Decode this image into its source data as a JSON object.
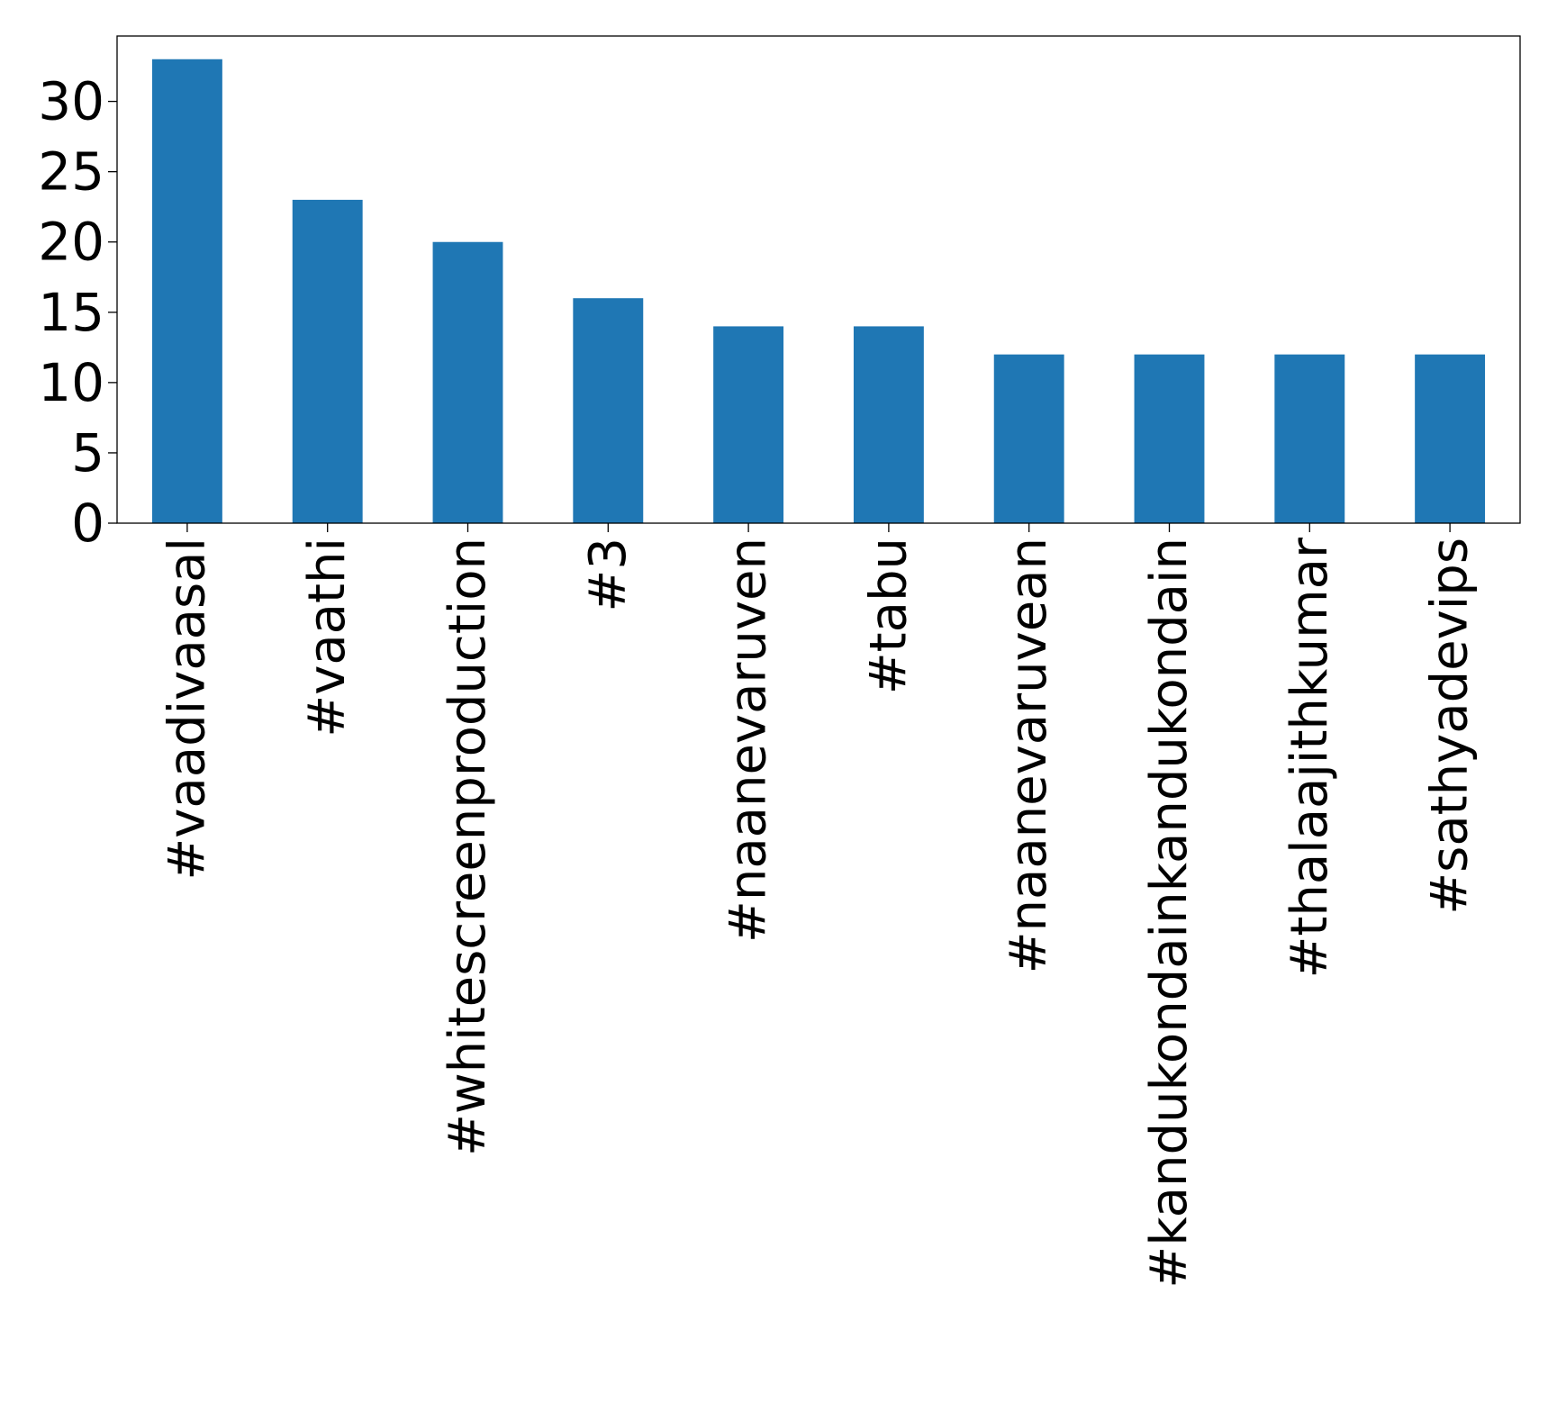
{
  "chart_data": {
    "type": "bar",
    "title": "",
    "xlabel": "",
    "ylabel": "",
    "categories": [
      "#vaadivaasal",
      "#vaathi",
      "#whitescreenproduction",
      "#3",
      "#naanevaruven",
      "#tabu",
      "#naanevaruvean",
      "#kandukondainkandukondain",
      "#thalaajithkumar",
      "#sathyadevips"
    ],
    "values": [
      33,
      23,
      20,
      16,
      14,
      14,
      12,
      12,
      12,
      12
    ],
    "ylim": [
      0,
      34.65
    ],
    "yticks": [
      0,
      5,
      10,
      15,
      20,
      25,
      30
    ],
    "grid": false,
    "legend": "none",
    "bar_color": "#1f77b4"
  }
}
